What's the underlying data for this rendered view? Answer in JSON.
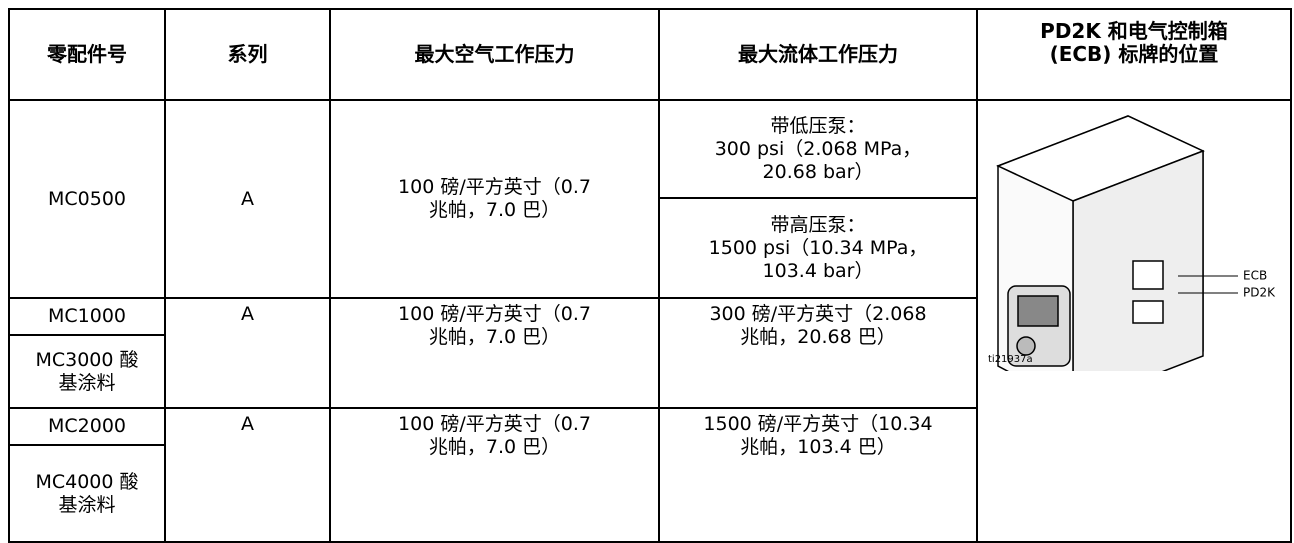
{
  "table": {
    "headers": [
      [
        "零配件号"
      ],
      [
        "系列"
      ],
      [
        "最大空气工作压力"
      ],
      [
        "最大流体工作压力"
      ],
      [
        "PD2K 和电气控制箱",
        "(ECB) 标牌的位置"
      ]
    ],
    "rows": [
      {
        "parts": [
          [
            "MC0500"
          ]
        ],
        "series": "A",
        "air": [
          "100 磅/平方英寸（0.7",
          "兆帕，7.0 巴）"
        ],
        "fluid": [
          [
            "带低压泵：",
            "300 psi（2.068 MPa，",
            "20.68 bar）"
          ],
          [
            "带高压泵：",
            "1500 psi（10.34 MPa，",
            "103.4 bar）"
          ]
        ]
      },
      {
        "parts": [
          [
            "MC1000"
          ],
          [
            "MC3000 酸",
            "基涂料"
          ]
        ],
        "series": "A",
        "air": [
          "100 磅/平方英寸（0.7",
          "兆帕，7.0 巴）"
        ],
        "fluid": [
          [
            "300 磅/平方英寸（2.068",
            "兆帕，20.68 巴）"
          ]
        ]
      },
      {
        "parts": [
          [
            "MC2000"
          ],
          [
            "MC4000 酸",
            "基涂料"
          ]
        ],
        "series": "A",
        "air": [
          "100 磅/平方英寸（0.7",
          "兆帕，7.0 巴）"
        ],
        "fluid": [
          [
            "1500 磅/平方英寸（10.34",
            "兆帕，103.4 巴）"
          ]
        ]
      }
    ],
    "figure": {
      "callouts": [
        "ECB",
        "PD2K"
      ],
      "id": "ti21937a"
    }
  }
}
